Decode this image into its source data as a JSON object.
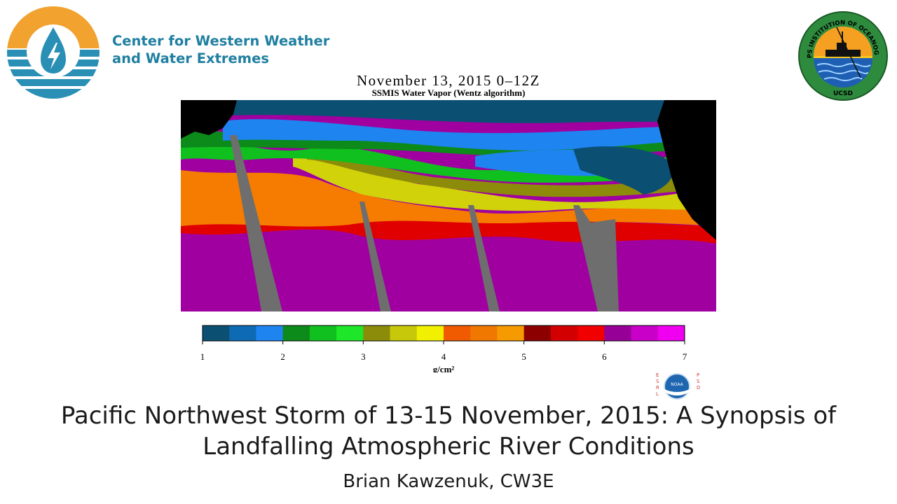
{
  "header": {
    "org_line1": "Center for Western Weather",
    "org_line2": "and Water Extremes",
    "right_logo": {
      "icon": "scripps-institution-seal",
      "text_top": "SCRIPPS INSTITUTION OF OCEANOGRAPHY",
      "text_bottom": "UCSD"
    }
  },
  "figure": {
    "title": "November 13, 2015 0–12Z",
    "subtitle": "SSMIS Water Vapor (Wentz algorithm)",
    "map_icon": "water-vapor-satellite-map",
    "colorbar": {
      "unit": "g/cm²",
      "ticks": [
        "1",
        "2",
        "3",
        "4",
        "5",
        "6",
        "7"
      ],
      "colors": [
        "#0b4f73",
        "#0d6ab3",
        "#1e84f0",
        "#0c8a1a",
        "#10c01e",
        "#1ee628",
        "#8c8c0a",
        "#c8c80a",
        "#f0f000",
        "#f05a00",
        "#f07800",
        "#f59a00",
        "#8c0000",
        "#d20000",
        "#f00000",
        "#960096",
        "#c800c8",
        "#f000f0"
      ]
    },
    "noaa_logo": {
      "left_text": "ESRL",
      "right_text": "PSD",
      "center_text": "NOAA"
    }
  },
  "slide": {
    "title_line1": "Pacific Northwest Storm of 13-15 November, 2015: A Synopsis of",
    "title_line2": "Landfalling Atmospheric River Conditions",
    "author": "Brian Kawzenuk, CW3E"
  }
}
